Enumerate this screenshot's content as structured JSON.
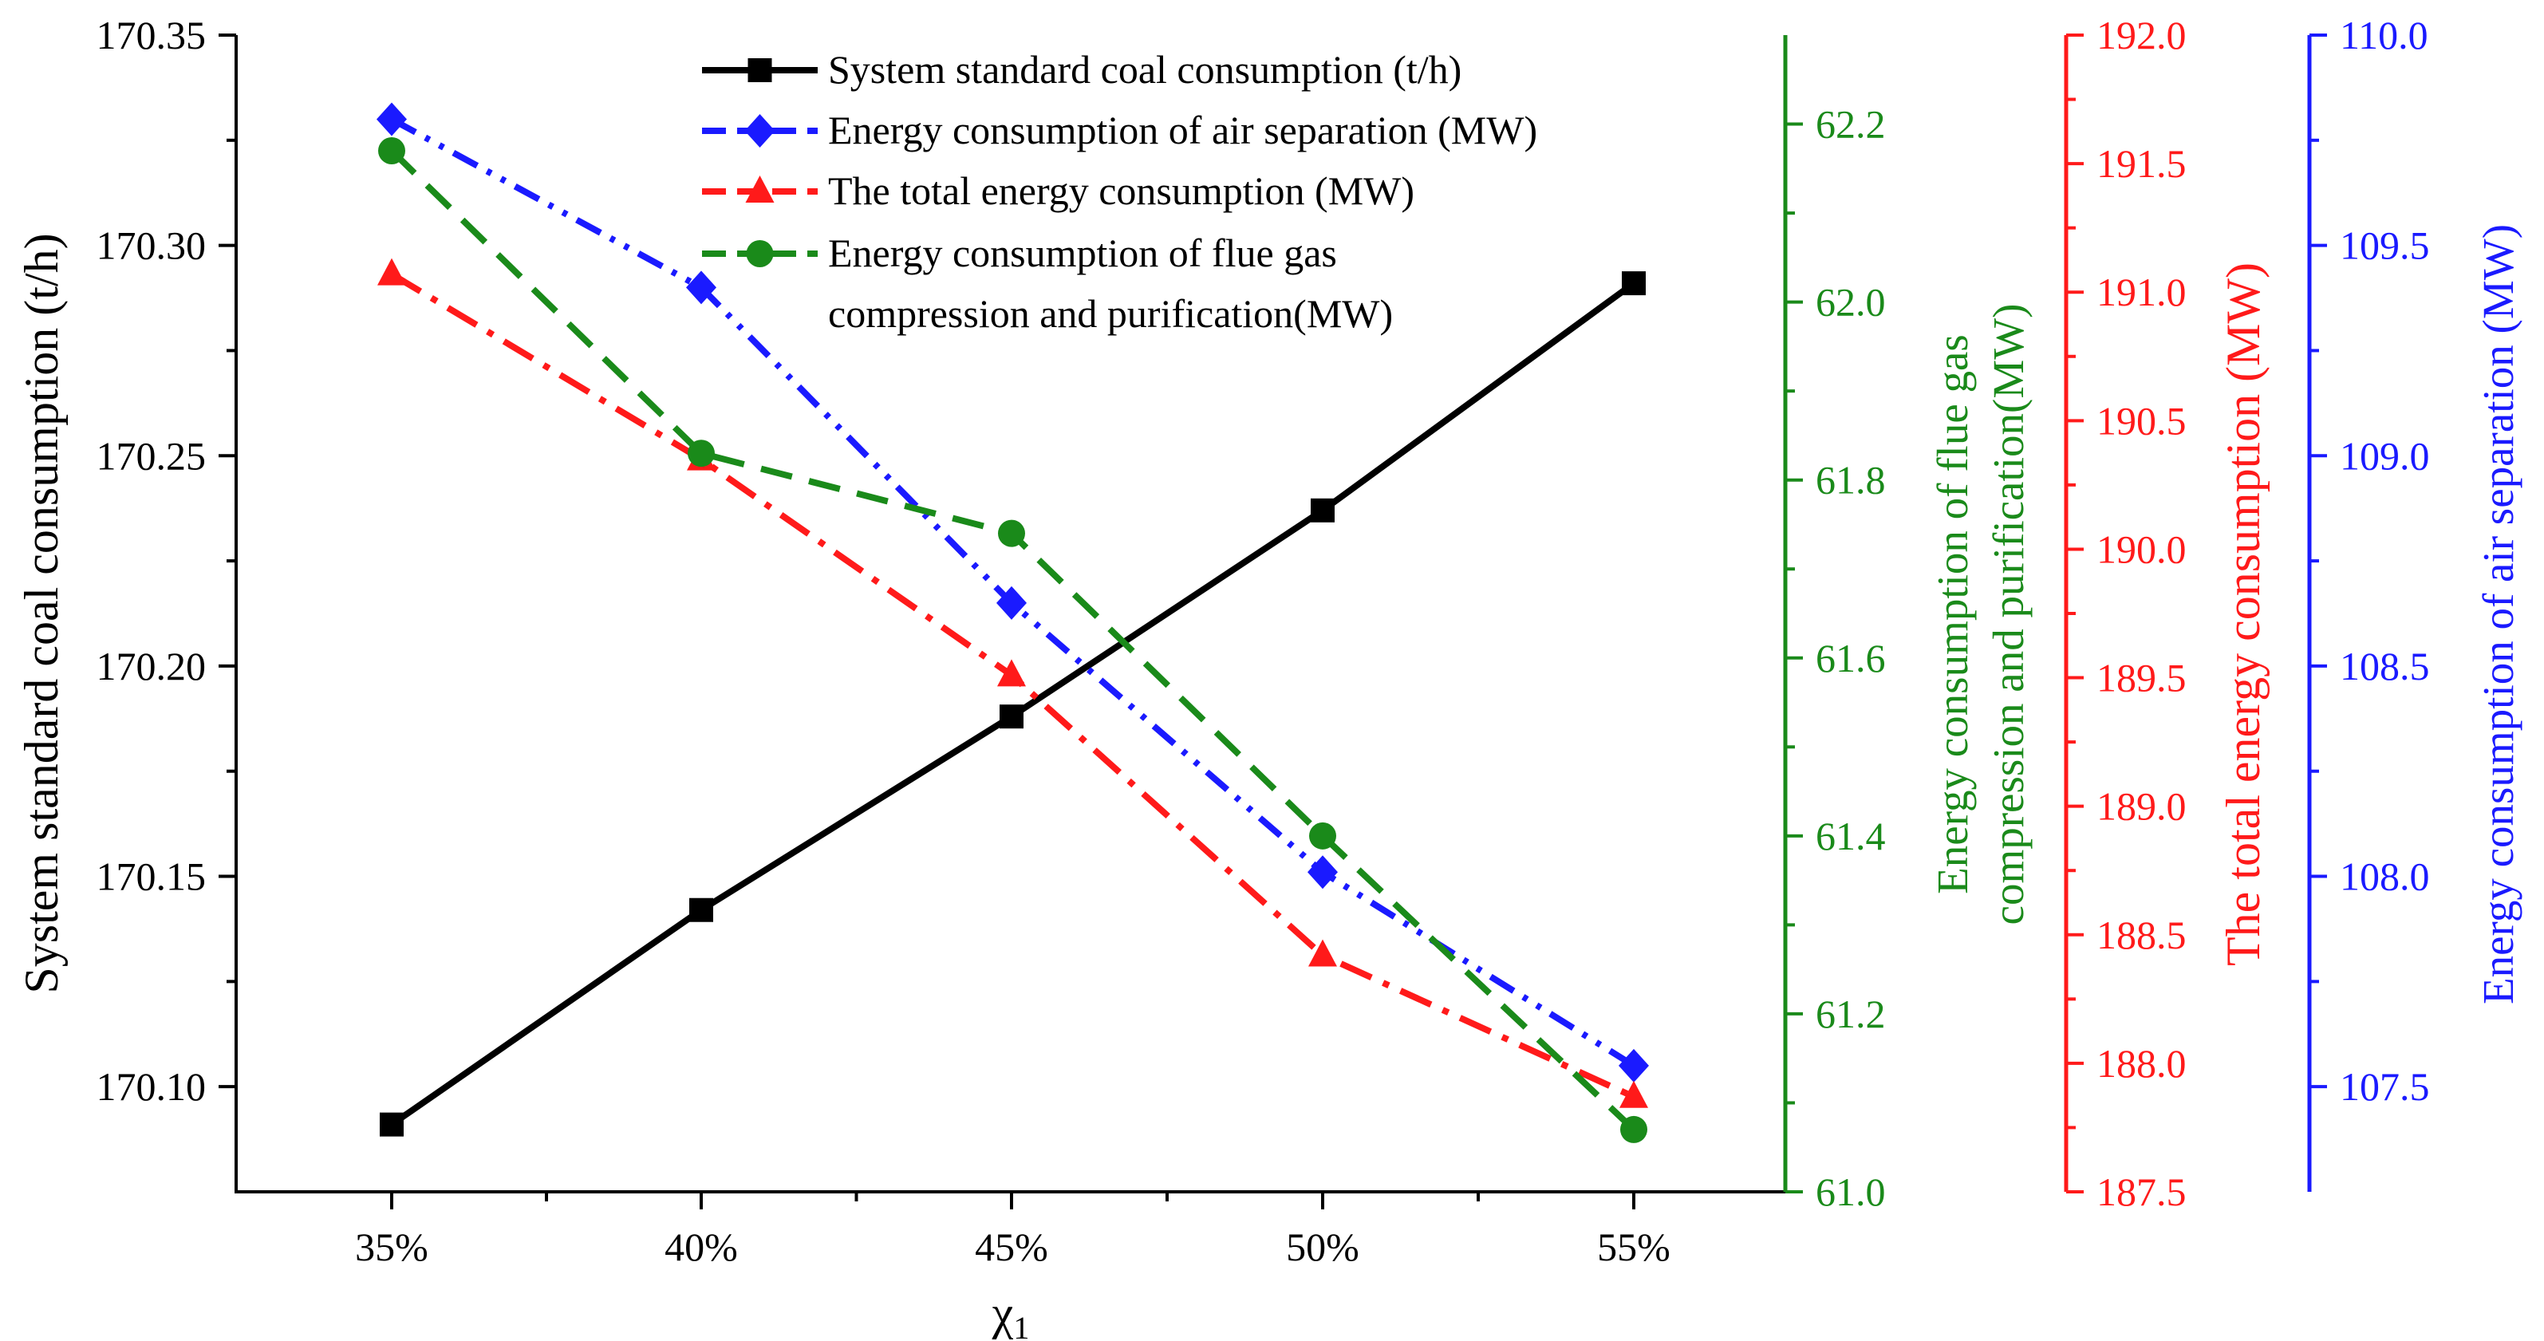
{
  "chart_data": {
    "type": "line",
    "categories": [
      "35%",
      "40%",
      "45%",
      "50%",
      "55%"
    ],
    "xlabel": "χ",
    "xlabel_subscript": "1",
    "legend": {
      "position": "top-center",
      "entries": [
        "System standard coal consumption (t/h)",
        "Energy consumption of air separation (MW)",
        "The total energy consumption (MW)",
        "Energy consumption of flue gas",
        "compression and purification(MW)"
      ]
    },
    "axes": [
      {
        "id": "coal",
        "side": "left",
        "color": "#000000",
        "label": "System standard coal consumption (t/h)",
        "ylim": [
          170.075,
          170.35
        ],
        "ticks": [
          170.1,
          170.15,
          170.2,
          170.25,
          170.3,
          170.35
        ],
        "tick_labels": [
          "170.10",
          "170.15",
          "170.20",
          "170.25",
          "170.30",
          "170.35"
        ]
      },
      {
        "id": "flue",
        "side": "right-1",
        "color": "#1a8a1a",
        "label_lines": [
          "Energy consumption of flue gas",
          "compression and purification(MW)"
        ],
        "ylim": [
          61.0,
          62.3
        ],
        "ticks": [
          61.0,
          61.2,
          61.4,
          61.6,
          61.8,
          62.0,
          62.2
        ],
        "tick_labels": [
          "61.0",
          "61.2",
          "61.4",
          "61.6",
          "61.8",
          "62.0",
          "62.2"
        ]
      },
      {
        "id": "total",
        "side": "right-2",
        "color": "#ff1a1a",
        "label": "The total energy consumption (MW)",
        "ylim": [
          187.5,
          192.0
        ],
        "ticks": [
          187.5,
          188.0,
          188.5,
          189.0,
          189.5,
          190.0,
          190.5,
          191.0,
          191.5,
          192.0
        ],
        "tick_labels": [
          "187.5",
          "188.0",
          "188.5",
          "189.0",
          "189.5",
          "190.0",
          "190.5",
          "191.0",
          "191.5",
          "192.0"
        ]
      },
      {
        "id": "air",
        "side": "right-3",
        "color": "#1a1aff",
        "label": "Energy consumption of air separation (MW)",
        "ylim": [
          107.25,
          110.0
        ],
        "ticks": [
          107.5,
          108.0,
          108.5,
          109.0,
          109.5,
          110.0
        ],
        "tick_labels": [
          "107.5",
          "108.0",
          "108.5",
          "109.0",
          "109.5",
          "110.0"
        ]
      }
    ],
    "series": [
      {
        "name": "System standard coal consumption (t/h)",
        "axis": "coal",
        "color": "#000000",
        "line": "solid",
        "marker": "square",
        "values": [
          170.091,
          170.142,
          170.188,
          170.237,
          170.291
        ]
      },
      {
        "name": "Energy consumption of air separation (MW)",
        "axis": "air",
        "color": "#1a1aff",
        "line": "dashdotdot",
        "marker": "diamond",
        "values": [
          109.8,
          109.4,
          108.65,
          108.01,
          107.55
        ]
      },
      {
        "name": "The total energy consumption (MW)",
        "axis": "total",
        "color": "#ff1a1a",
        "line": "dashdot",
        "marker": "triangle",
        "values": [
          191.07,
          190.35,
          189.51,
          188.42,
          187.87
        ]
      },
      {
        "name": "Energy consumption of flue gas compression and purification(MW)",
        "axis": "flue",
        "color": "#1a8a1a",
        "line": "dashed",
        "marker": "circle",
        "values": [
          62.17,
          61.83,
          61.74,
          61.4,
          61.07
        ]
      }
    ]
  }
}
